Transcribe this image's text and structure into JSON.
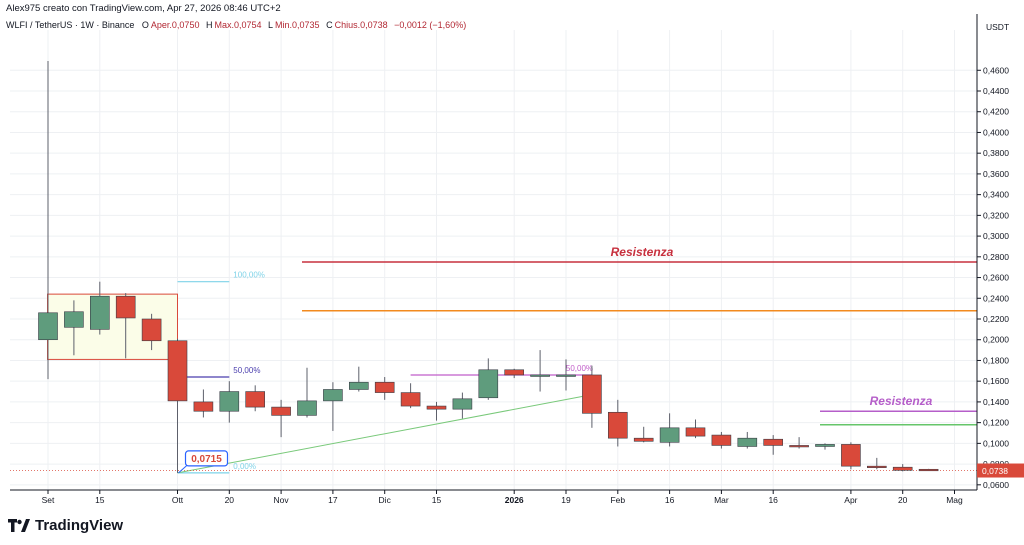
{
  "header": {
    "credit": "Alex975 creato con TradingView.com, Apr 27, 2026 08:46 UTC+2",
    "symbol": "WLFI / TetherUS · 1W · Binance",
    "open_label": "O",
    "open": "Aper.0,0750",
    "high_label": "H",
    "high": "Max.0,0754",
    "low_label": "L",
    "low": "Min.0,0735",
    "close_label": "C",
    "close": "Chius.0,0738",
    "change": "−0,0012 (−1,60%)"
  },
  "brand": {
    "name": "TradingView",
    "icon": "tradingview-logo-icon"
  },
  "colors": {
    "up": "#5f9c7d",
    "down": "#d9493a",
    "grid": "#eef0f3",
    "axis": "#131722"
  },
  "chart_data": {
    "type": "candlestick",
    "currency": "USDT",
    "ylim": [
      0.055,
      0.495
    ],
    "y_ticks": [
      "0,0600",
      "0,0800",
      "0,1000",
      "0,1200",
      "0,1400",
      "0,1600",
      "0,1800",
      "0,2000",
      "0,2200",
      "0,2400",
      "0,2600",
      "0,2800",
      "0,3000",
      "0,3200",
      "0,3400",
      "0,3600",
      "0,3800",
      "0,4000",
      "0,4200",
      "0,4400",
      "0,4600"
    ],
    "x_ticks": [
      {
        "label": "Set",
        "bar": 0
      },
      {
        "label": "15",
        "bar": 2
      },
      {
        "label": "Ott",
        "bar": 5
      },
      {
        "label": "20",
        "bar": 7
      },
      {
        "label": "Nov",
        "bar": 9
      },
      {
        "label": "17",
        "bar": 11
      },
      {
        "label": "Dic",
        "bar": 13
      },
      {
        "label": "15",
        "bar": 15
      },
      {
        "label": "2026",
        "bar": 18,
        "bold": true
      },
      {
        "label": "19",
        "bar": 20
      },
      {
        "label": "Feb",
        "bar": 22
      },
      {
        "label": "16",
        "bar": 24
      },
      {
        "label": "Mar",
        "bar": 26
      },
      {
        "label": "16",
        "bar": 28
      },
      {
        "label": "Apr",
        "bar": 31
      },
      {
        "label": "20",
        "bar": 33
      },
      {
        "label": "Mag",
        "bar": 35
      }
    ],
    "candles": [
      {
        "o": 0.2,
        "h": 0.469,
        "l": 0.162,
        "c": 0.226
      },
      {
        "o": 0.212,
        "h": 0.238,
        "l": 0.185,
        "c": 0.227
      },
      {
        "o": 0.21,
        "h": 0.256,
        "l": 0.205,
        "c": 0.242
      },
      {
        "o": 0.242,
        "h": 0.245,
        "l": 0.182,
        "c": 0.221
      },
      {
        "o": 0.22,
        "h": 0.225,
        "l": 0.19,
        "c": 0.199
      },
      {
        "o": 0.199,
        "h": 0.201,
        "l": 0.0715,
        "c": 0.141
      },
      {
        "o": 0.14,
        "h": 0.152,
        "l": 0.125,
        "c": 0.131
      },
      {
        "o": 0.131,
        "h": 0.16,
        "l": 0.12,
        "c": 0.15
      },
      {
        "o": 0.15,
        "h": 0.156,
        "l": 0.131,
        "c": 0.135
      },
      {
        "o": 0.135,
        "h": 0.142,
        "l": 0.106,
        "c": 0.127
      },
      {
        "o": 0.127,
        "h": 0.173,
        "l": 0.125,
        "c": 0.141
      },
      {
        "o": 0.141,
        "h": 0.159,
        "l": 0.112,
        "c": 0.152
      },
      {
        "o": 0.152,
        "h": 0.174,
        "l": 0.15,
        "c": 0.159
      },
      {
        "o": 0.159,
        "h": 0.164,
        "l": 0.142,
        "c": 0.149
      },
      {
        "o": 0.149,
        "h": 0.158,
        "l": 0.134,
        "c": 0.136
      },
      {
        "o": 0.136,
        "h": 0.14,
        "l": 0.122,
        "c": 0.133
      },
      {
        "o": 0.133,
        "h": 0.149,
        "l": 0.124,
        "c": 0.143
      },
      {
        "o": 0.144,
        "h": 0.182,
        "l": 0.142,
        "c": 0.171
      },
      {
        "o": 0.171,
        "h": 0.172,
        "l": 0.163,
        "c": 0.166
      },
      {
        "o": 0.166,
        "h": 0.19,
        "l": 0.15,
        "c": 0.166
      },
      {
        "o": 0.166,
        "h": 0.181,
        "l": 0.151,
        "c": 0.166
      },
      {
        "o": 0.166,
        "h": 0.175,
        "l": 0.115,
        "c": 0.129
      },
      {
        "o": 0.13,
        "h": 0.142,
        "l": 0.097,
        "c": 0.105
      },
      {
        "o": 0.105,
        "h": 0.116,
        "l": 0.101,
        "c": 0.102
      },
      {
        "o": 0.101,
        "h": 0.129,
        "l": 0.097,
        "c": 0.115
      },
      {
        "o": 0.115,
        "h": 0.123,
        "l": 0.105,
        "c": 0.107
      },
      {
        "o": 0.108,
        "h": 0.111,
        "l": 0.095,
        "c": 0.098
      },
      {
        "o": 0.097,
        "h": 0.111,
        "l": 0.095,
        "c": 0.105
      },
      {
        "o": 0.104,
        "h": 0.108,
        "l": 0.089,
        "c": 0.098
      },
      {
        "o": 0.098,
        "h": 0.106,
        "l": 0.095,
        "c": 0.097
      },
      {
        "o": 0.097,
        "h": 0.1,
        "l": 0.094,
        "c": 0.099
      },
      {
        "o": 0.099,
        "h": 0.101,
        "l": 0.075,
        "c": 0.078
      },
      {
        "o": 0.078,
        "h": 0.086,
        "l": 0.075,
        "c": 0.077
      },
      {
        "o": 0.077,
        "h": 0.08,
        "l": 0.073,
        "c": 0.074
      },
      {
        "o": 0.075,
        "h": 0.0754,
        "l": 0.0735,
        "c": 0.0738
      }
    ],
    "price_tag": {
      "label": "0,0738",
      "value": 0.0738,
      "color": "#d9493a"
    },
    "annotations": {
      "range_box": {
        "bar_start": 0,
        "bar_end": 5,
        "top": 0.244,
        "bottom": 0.181,
        "fill": "#fbfde8",
        "border": "#d9493a"
      },
      "fib_levels": [
        {
          "label": "100,00%",
          "value": 0.256,
          "color": "#7fd3e8",
          "bar_start": 5,
          "bar_end": 7
        },
        {
          "label": "50,00%",
          "value": 0.164,
          "color": "#4b3fae",
          "bar_start": 5,
          "bar_end": 7
        },
        {
          "label": "0,00%",
          "value": 0.0715,
          "color": "#7fd3e8",
          "bar_start": 5,
          "bar_end": 7
        }
      ],
      "fib_levels_2": [
        {
          "label": "50,00%",
          "value": 0.166,
          "color": "#c15ec9",
          "bar_start": 14,
          "bar_end": 21
        }
      ],
      "low_callout": {
        "label": "0,0715",
        "value": 0.0715,
        "bar": 5,
        "color": "#2962ff",
        "text_color": "#d9493a"
      },
      "trend_line": {
        "from_bar": 5,
        "from": 0.0715,
        "to_bar": 21,
        "to": 0.147,
        "color": "#79c97a"
      },
      "resistances": [
        {
          "label": "Resistenza",
          "value": 0.275,
          "color": "#c7303e",
          "bar_start": 10,
          "show_label": true
        },
        {
          "label": "",
          "value": 0.228,
          "color": "#f28a1e",
          "bar_start": 10,
          "show_label": false
        },
        {
          "label": "Resistenza",
          "value": 0.131,
          "color": "#b55ec9",
          "bar_start": 30,
          "show_label": true
        },
        {
          "label": "",
          "value": 0.118,
          "color": "#66c56a",
          "bar_start": 30,
          "show_label": false
        }
      ]
    }
  }
}
